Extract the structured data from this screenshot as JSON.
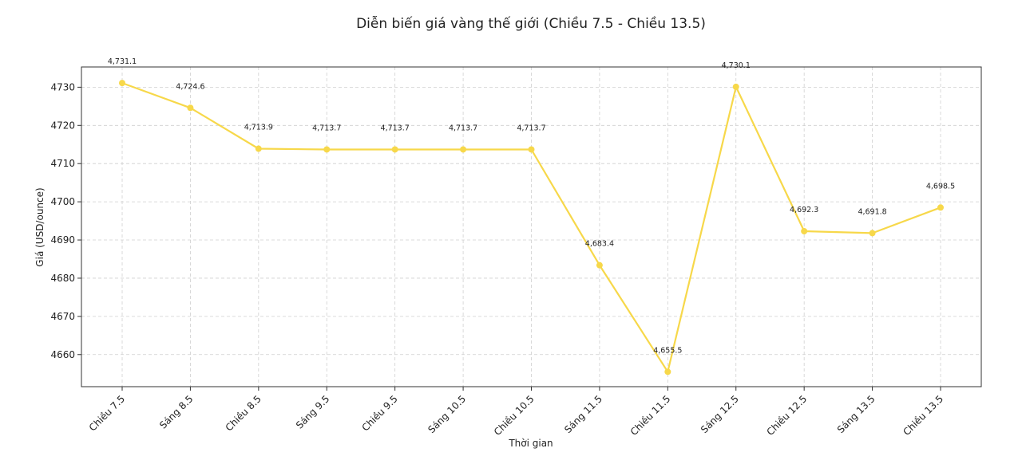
{
  "chart_data": {
    "type": "line",
    "title": "Diễn biến giá vàng thế giới (Chiều 7.5 - Chiều 13.5)",
    "xlabel": "Thời gian",
    "ylabel": "Giá (USD/ounce)",
    "categories": [
      "Chiều 7.5",
      "Sáng 8.5",
      "Chiều 8.5",
      "Sáng 9.5",
      "Chiều 9.5",
      "Sáng 10.5",
      "Chiều 10.5",
      "Sáng 11.5",
      "Chiều 11.5",
      "Sáng 12.5",
      "Chiều 12.5",
      "Sáng 13.5",
      "Chiều 13.5"
    ],
    "values": [
      4731.1,
      4724.6,
      4713.9,
      4713.7,
      4713.7,
      4713.7,
      4713.7,
      4683.4,
      4655.5,
      4730.1,
      4692.3,
      4691.8,
      4698.5
    ],
    "data_labels": [
      "4,731.1",
      "4,724.6",
      "4,713.9",
      "4,713.7",
      "4,713.7",
      "4,713.7",
      "4,713.7",
      "4,683.4",
      "4,655.5",
      "4,730.1",
      "4,692.3",
      "4,691.8",
      "4,698.5"
    ],
    "yticks": [
      4660,
      4670,
      4680,
      4690,
      4700,
      4710,
      4720,
      4730
    ],
    "ylim": [
      4651.6,
      4735.3
    ],
    "grid": true,
    "line_color": "#f7d84a"
  }
}
